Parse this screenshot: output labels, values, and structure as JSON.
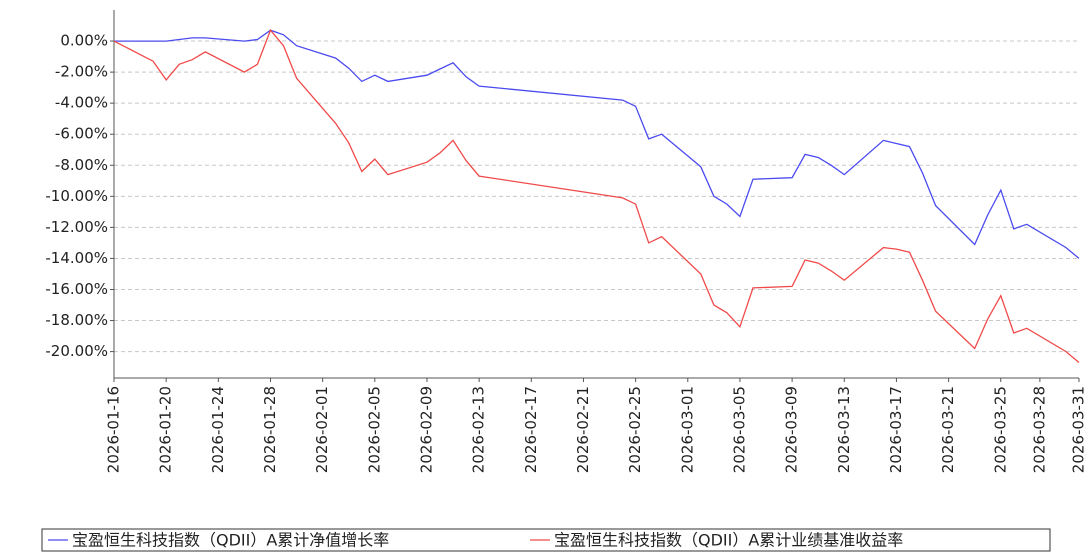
{
  "chart_data": {
    "type": "line",
    "x": [
      "2026-01-16",
      "2026-01-19",
      "2026-01-20",
      "2026-01-21",
      "2026-01-22",
      "2026-01-23",
      "2026-01-26",
      "2026-01-27",
      "2026-01-28",
      "2026-01-29",
      "2026-01-30",
      "2026-02-02",
      "2026-02-03",
      "2026-02-04",
      "2026-02-05",
      "2026-02-06",
      "2026-02-09",
      "2026-02-10",
      "2026-02-11",
      "2026-02-12",
      "2026-02-13",
      "2026-02-24",
      "2026-02-25",
      "2026-02-26",
      "2026-02-27",
      "2026-03-02",
      "2026-03-03",
      "2026-03-04",
      "2026-03-05",
      "2026-03-06",
      "2026-03-09",
      "2026-03-10",
      "2026-03-11",
      "2026-03-12",
      "2026-03-13",
      "2026-03-16",
      "2026-03-17",
      "2026-03-18",
      "2026-03-19",
      "2026-03-20",
      "2026-03-23",
      "2026-03-24",
      "2026-03-25",
      "2026-03-26",
      "2026-03-27",
      "2026-03-30",
      "2026-03-31"
    ],
    "series": [
      {
        "name": "宝盈恒生科技指数（QDII）A累计净值增长率",
        "color": "#4a4af0",
        "values": [
          0,
          0,
          0,
          0.1,
          0.2,
          0.2,
          0,
          0.1,
          0.7,
          0.4,
          -0.3,
          -1.1,
          -1.75,
          -2.6,
          -2.2,
          -2.6,
          -2.2,
          -1.8,
          -1.4,
          -2.3,
          -2.9,
          -3.8,
          -4.2,
          -6.3,
          -6.0,
          -8.1,
          -10.0,
          -10.5,
          -11.3,
          -8.9,
          -8.8,
          -7.3,
          -7.5,
          -8.0,
          -8.6,
          -6.4,
          -6.6,
          -6.8,
          -8.5,
          -10.6,
          -13.1,
          -11.2,
          -9.6,
          -12.1,
          -11.8,
          -13.3,
          -14.0
        ]
      },
      {
        "name": "宝盈恒生科技指数（QDII）A累计业绩基准收益率",
        "color": "#f04a4a",
        "values": [
          0,
          -1.3,
          -2.5,
          -1.5,
          -1.2,
          -0.7,
          -2.0,
          -1.5,
          0.7,
          -0.3,
          -2.4,
          -5.3,
          -6.55,
          -8.4,
          -7.6,
          -8.6,
          -7.8,
          -7.2,
          -6.4,
          -7.7,
          -8.7,
          -10.1,
          -10.5,
          -13.0,
          -12.6,
          -15.0,
          -17.0,
          -17.5,
          -18.4,
          -15.9,
          -15.8,
          -14.1,
          -14.3,
          -14.8,
          -15.4,
          -13.3,
          -13.4,
          -13.6,
          -15.4,
          -17.4,
          -19.8,
          -17.9,
          -16.4,
          -18.8,
          -18.5,
          -20.0,
          -20.7
        ]
      }
    ],
    "ylim": [
      -21.7,
      2
    ],
    "yticks": [
      {
        "value": 0,
        "label": "0.00%"
      },
      {
        "value": -2,
        "label": "-2.00%"
      },
      {
        "value": -4,
        "label": "-4.00%"
      },
      {
        "value": -6,
        "label": "-6.00%"
      },
      {
        "value": -8,
        "label": "-8.00%"
      },
      {
        "value": -10,
        "label": "-10.00%"
      },
      {
        "value": -12,
        "label": "-12.00%"
      },
      {
        "value": -14,
        "label": "-14.00%"
      },
      {
        "value": -16,
        "label": "-16.00%"
      },
      {
        "value": -18,
        "label": "-18.00%"
      },
      {
        "value": -20,
        "label": "-20.00%"
      }
    ],
    "xlim": [
      "2026-01-16",
      "2026-03-31"
    ],
    "xticks": [
      "2026-01-16",
      "2026-01-20",
      "2026-01-24",
      "2026-01-28",
      "2026-02-01",
      "2026-02-05",
      "2026-02-09",
      "2026-02-13",
      "2026-02-17",
      "2026-02-21",
      "2026-02-25",
      "2026-03-01",
      "2026-03-05",
      "2026-03-09",
      "2026-03-13",
      "2026-03-17",
      "2026-03-21",
      "2026-03-25",
      "2026-03-28",
      "2026-03-31"
    ],
    "grid": true,
    "legend": "bottom"
  }
}
